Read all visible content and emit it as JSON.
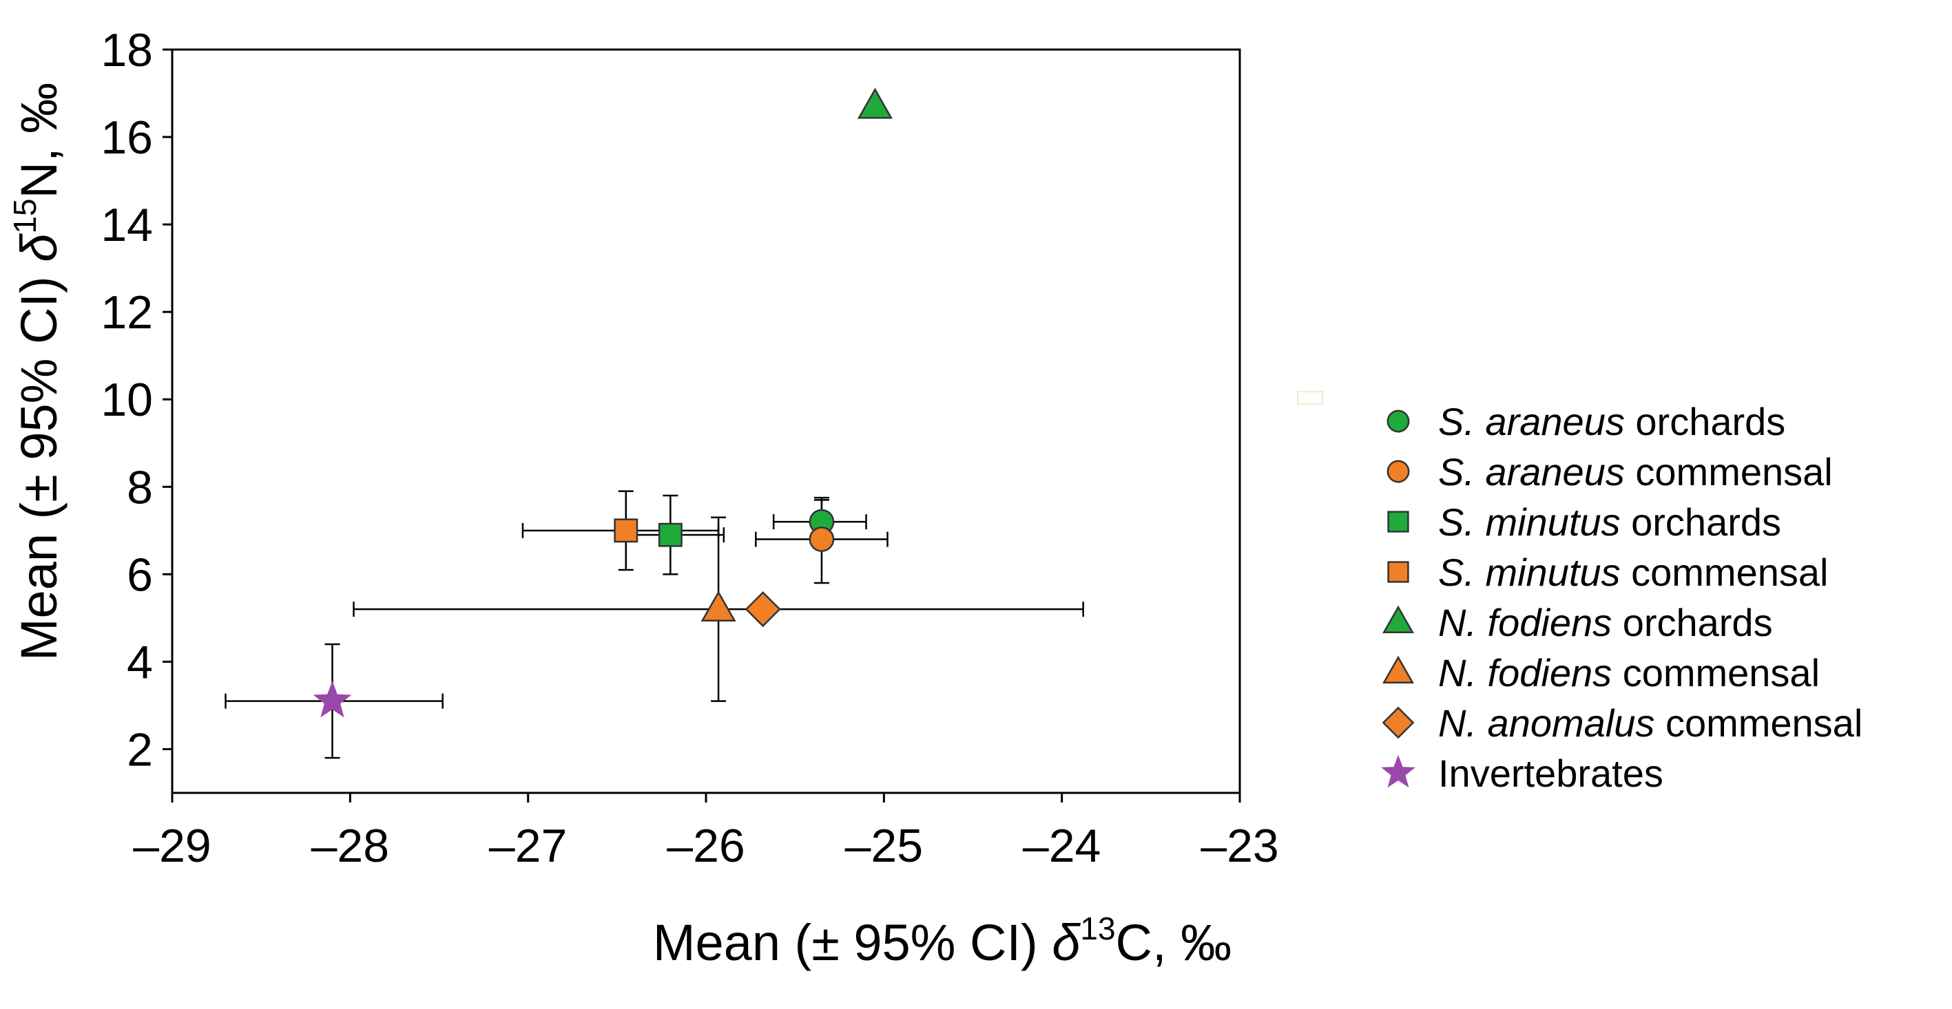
{
  "chart_data": {
    "type": "scatter",
    "xlabel": {
      "pre": "Mean (± 95% CI) ",
      "sym": "δ",
      "sup": "13",
      "post": "C, ‰"
    },
    "ylabel": {
      "pre": "Mean (± 95% CI) ",
      "sym": "δ",
      "sup": "15",
      "post": "N, ‰"
    },
    "xlim": [
      -29,
      -23
    ],
    "ylim": [
      1,
      18
    ],
    "xticks": [
      -29,
      -28,
      -27,
      -26,
      -25,
      -24,
      -23
    ],
    "xtick_labels": [
      "–29",
      "–28",
      "–27",
      "–26",
      "–25",
      "–24",
      "–23"
    ],
    "yticks": [
      2,
      4,
      6,
      8,
      10,
      12,
      14,
      16,
      18
    ],
    "ytick_labels": [
      "2",
      "4",
      "6",
      "8",
      "10",
      "12",
      "14",
      "16",
      "18"
    ],
    "legend_position": "right",
    "series": [
      {
        "italic": "S. araneus",
        "name": "orchards",
        "marker": "circle",
        "color": "#1faa3c",
        "x": -25.35,
        "y": 7.2,
        "x_ci": [
          -25.62,
          -25.1
        ],
        "y_ci": [
          6.6,
          7.75
        ]
      },
      {
        "italic": "S. araneus",
        "name": "commensal",
        "marker": "circle",
        "color": "#f07f26",
        "x": -25.35,
        "y": 6.8,
        "x_ci": [
          -25.72,
          -24.98
        ],
        "y_ci": [
          5.8,
          7.7
        ]
      },
      {
        "italic": "S. minutus",
        "name": "orchards",
        "marker": "square",
        "color": "#1faa3c",
        "x": -26.2,
        "y": 6.9,
        "x_ci": [
          -26.5,
          -25.9
        ],
        "y_ci": [
          6.0,
          7.8
        ]
      },
      {
        "italic": "S. minutus",
        "name": "commensal",
        "marker": "square",
        "color": "#f07f26",
        "x": -26.45,
        "y": 7.0,
        "x_ci": [
          -27.03,
          -25.93
        ],
        "y_ci": [
          6.1,
          7.9
        ]
      },
      {
        "italic": "N. fodiens",
        "name": "orchards",
        "marker": "triangle",
        "color": "#1faa3c",
        "x": -25.05,
        "y": 16.7,
        "x_ci": null,
        "y_ci": null
      },
      {
        "italic": "N. fodiens",
        "name": "commensal",
        "marker": "triangle",
        "color": "#f07f26",
        "x": -25.93,
        "y": 5.2,
        "x_ci": null,
        "y_ci": [
          3.1,
          7.3
        ]
      },
      {
        "italic": "N. anomalus",
        "name": "commensal",
        "marker": "diamond",
        "color": "#f07f26",
        "x": -25.68,
        "y": 5.2,
        "x_ci": [
          -27.98,
          -23.88
        ],
        "y_ci": null
      },
      {
        "italic": "",
        "name": "Invertebrates",
        "marker": "star",
        "color": "#9b48ad",
        "x": -28.1,
        "y": 3.1,
        "x_ci": [
          -28.7,
          -27.48
        ],
        "y_ci": [
          1.8,
          4.4
        ]
      }
    ]
  }
}
